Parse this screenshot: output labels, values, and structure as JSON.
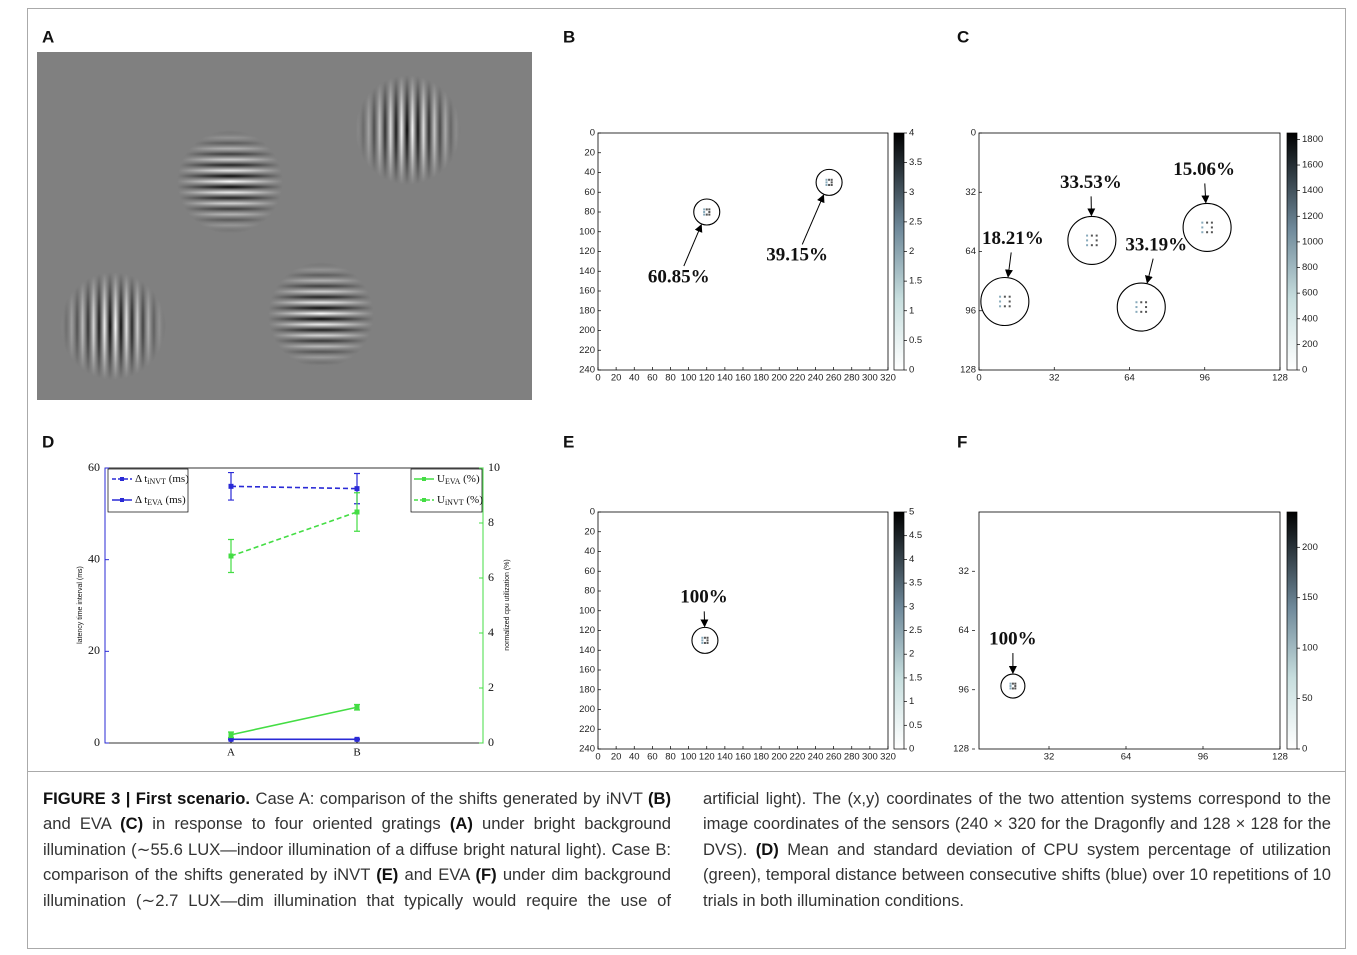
{
  "image_panel": {
    "panel": "A"
  },
  "chart_data": [
    {
      "type": "scatter",
      "panel": "B",
      "xlim": [
        0,
        320
      ],
      "xticks": [
        0,
        20,
        40,
        60,
        80,
        100,
        120,
        140,
        160,
        180,
        200,
        220,
        240,
        260,
        280,
        300,
        320
      ],
      "ylim": [
        0,
        240
      ],
      "yticks": [
        0,
        20,
        40,
        60,
        80,
        100,
        120,
        140,
        160,
        180,
        200,
        220,
        240
      ],
      "clim": [
        0,
        4
      ],
      "cticks": [
        0,
        0.5,
        1,
        1.5,
        2,
        2.5,
        3,
        3.5,
        4
      ],
      "annotations": [
        {
          "x": 120,
          "y": 80,
          "text": "60.85%"
        },
        {
          "x": 255,
          "y": 50,
          "text": "39.15%"
        }
      ]
    },
    {
      "type": "scatter",
      "panel": "C",
      "xlim": [
        0,
        128
      ],
      "xticks": [
        0,
        32,
        64,
        96,
        128
      ],
      "ylim": [
        0,
        128
      ],
      "yticks": [
        0,
        32,
        64,
        96,
        128
      ],
      "clim": [
        0,
        1850
      ],
      "cticks": [
        0,
        200,
        400,
        600,
        800,
        1000,
        1200,
        1400,
        1600,
        1800
      ],
      "annotations": [
        {
          "x": 11,
          "y": 91,
          "text": "18.21%"
        },
        {
          "x": 48,
          "y": 58,
          "text": "33.53%"
        },
        {
          "x": 69,
          "y": 94,
          "text": "33.19%"
        },
        {
          "x": 97,
          "y": 51,
          "text": "15.06%"
        }
      ]
    },
    {
      "type": "line",
      "panel": "D",
      "categories": [
        "A",
        "B"
      ],
      "ylim": [
        0,
        60
      ],
      "yticks": [
        0,
        20,
        40,
        60
      ],
      "y2lim": [
        0,
        10
      ],
      "y2ticks": [
        0,
        2,
        4,
        6,
        8,
        10
      ],
      "ylabel": "latency time interval (ms)",
      "y2label": "normalized cpu utilization (%)",
      "series": [
        {
          "name": [
            "Δ t",
            "iNVT",
            " (ms)"
          ],
          "color": "#2a2ad6",
          "dashed": true,
          "values": [
            56,
            55.5
          ],
          "errors": [
            3,
            3.3
          ]
        },
        {
          "name": [
            "Δ t",
            "EVA",
            " (ms)"
          ],
          "color": "#2a2ad6",
          "dashed": false,
          "values": [
            0.8,
            0.8
          ],
          "errors": [
            0.1,
            0.1
          ]
        },
        {
          "name": [
            "U",
            "EVA",
            " (%)"
          ],
          "color": "#44dd44",
          "dashed": false,
          "axis": "y2",
          "values": [
            0.3,
            1.3
          ],
          "errors": [
            0.1,
            0.1
          ]
        },
        {
          "name": [
            "U",
            "iNVT",
            " (%)"
          ],
          "color": "#44dd44",
          "dashed": true,
          "axis": "y2",
          "values": [
            6.8,
            8.4
          ],
          "errors": [
            0.6,
            0.7
          ]
        }
      ]
    },
    {
      "type": "scatter",
      "panel": "E",
      "xlim": [
        0,
        320
      ],
      "xticks": [
        0,
        20,
        40,
        60,
        80,
        100,
        120,
        140,
        160,
        180,
        200,
        220,
        240,
        260,
        280,
        300,
        320
      ],
      "ylim": [
        0,
        240
      ],
      "yticks": [
        0,
        20,
        40,
        60,
        80,
        100,
        120,
        140,
        160,
        180,
        200,
        220,
        240
      ],
      "clim": [
        0,
        5
      ],
      "cticks": [
        0,
        0.5,
        1,
        1.5,
        2,
        2.5,
        3,
        3.5,
        4,
        4.5,
        5
      ],
      "annotations": [
        {
          "x": 118,
          "y": 130,
          "text": "100%"
        }
      ]
    },
    {
      "type": "scatter",
      "panel": "F",
      "xlim": [
        0,
        128
      ],
      "xticks": [
        32,
        64,
        96,
        128
      ],
      "ylim": [
        0,
        128
      ],
      "yticks": [
        32,
        64,
        96,
        128
      ],
      "clim": [
        0,
        235
      ],
      "cticks": [
        0,
        50,
        100,
        150,
        200
      ],
      "annotations": [
        {
          "x": 17,
          "y": 94,
          "text": "100%"
        }
      ]
    }
  ],
  "caption": [
    {
      "text": "FIGURE 3 | First scenario.",
      "bold": true
    },
    {
      "text": " Case A: comparison of the shifts generated by iNVT ",
      "bold": false
    },
    {
      "text": "(B)",
      "bold": true
    },
    {
      "text": " and EVA ",
      "bold": false
    },
    {
      "text": "(C)",
      "bold": true
    },
    {
      "text": " in response to four oriented gratings ",
      "bold": false
    },
    {
      "text": "(A)",
      "bold": true
    },
    {
      "text": " under bright background illumination (∼55.6 LUX—indoor illumination of a diffuse bright natural light). Case B: comparison of the shifts generated by iNVT ",
      "bold": false
    },
    {
      "text": "(E)",
      "bold": true
    },
    {
      "text": " and EVA ",
      "bold": false
    },
    {
      "text": "(F)",
      "bold": true
    },
    {
      "text": " under dim background illumination (∼2.7 LUX—dim illumination that typically would require the use of artificial light). The (x,y) coordinates of the two attention systems correspond to the image coordinates of the sensors (240 × 320 for the Dragonfly and 128 × 128 for the DVS). ",
      "bold": false
    },
    {
      "text": "(D)",
      "bold": true
    },
    {
      "text": " Mean and standard deviation of CPU system percentage of utilization (green), temporal distance between consecutive shifts (blue) over 10 repetitions of 10 trials in both illumination conditions.",
      "bold": false
    }
  ]
}
